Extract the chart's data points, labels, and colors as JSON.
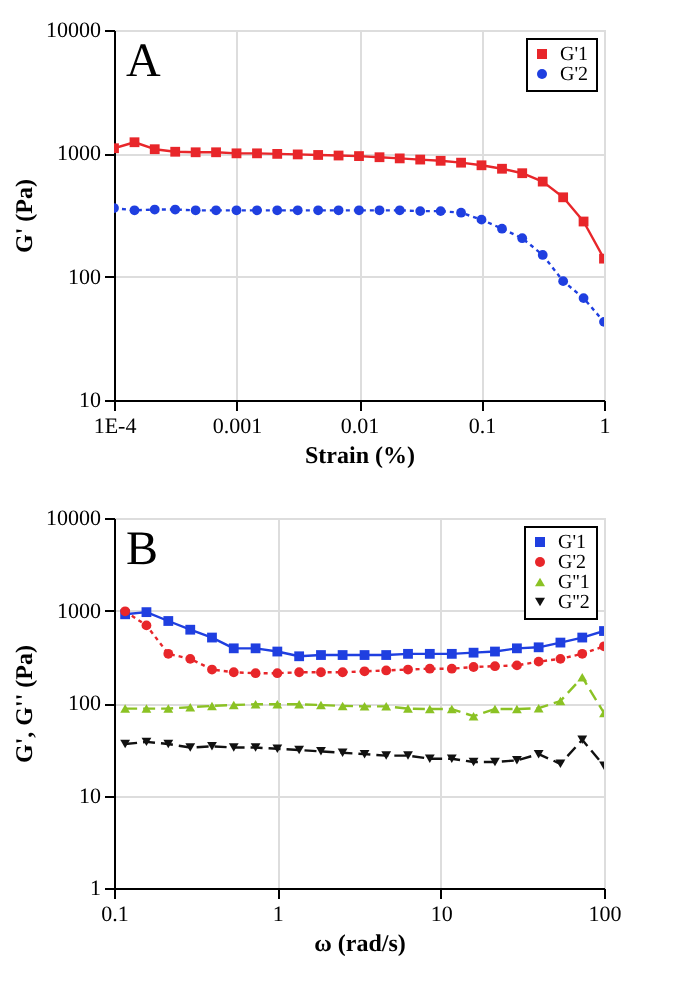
{
  "chart_data": [
    {
      "type": "line",
      "annotations": [
        "A"
      ],
      "xlabel": "Strain (%)",
      "ylabel": "G' (Pa)",
      "log": "xy",
      "grid": true,
      "legend": "top right",
      "xlim": [
        0.0001,
        1
      ],
      "xticks": [
        {
          "value": 0.0001,
          "label": "1E-4"
        },
        0.001,
        0.01,
        0.1,
        1
      ],
      "ylim": [
        10,
        10000
      ],
      "yticks": [
        10,
        100,
        1000,
        10000
      ],
      "x": [
        0.0001,
        0.000147,
        0.000215,
        0.000316,
        0.000464,
        0.000681,
        0.001,
        0.00147,
        0.00215,
        0.00316,
        0.00464,
        0.00681,
        0.01,
        0.0147,
        0.0215,
        0.0316,
        0.0464,
        0.0681,
        0.1,
        0.147,
        0.215,
        0.316,
        0.464,
        0.681,
        1
      ],
      "series": [
        {
          "name": "G'1",
          "color": "#e8262a",
          "marker": "square",
          "line_style": "solid",
          "values": [
            1100,
            1230,
            1080,
            1030,
            1020,
            1020,
            1000,
            1000,
            990,
            980,
            970,
            960,
            950,
            930,
            910,
            890,
            870,
            840,
            800,
            750,
            690,
            590,
            440,
            280,
            140
          ]
        },
        {
          "name": "G'2",
          "color": "#1f3fe0",
          "marker": "circle",
          "line_style": "dotted",
          "values": [
            360,
            345,
            350,
            350,
            345,
            345,
            345,
            345,
            345,
            345,
            345,
            345,
            345,
            345,
            345,
            340,
            340,
            330,
            290,
            245,
            205,
            150,
            92,
            67,
            43
          ]
        }
      ]
    },
    {
      "type": "line",
      "annotations": [
        "B"
      ],
      "xlabel": "ω (rad/s)",
      "ylabel": "G', G'' (Pa)",
      "log": "xy",
      "grid": true,
      "legend": "top right",
      "xlim": [
        0.1,
        100
      ],
      "xticks": [
        0.1,
        1,
        10,
        100
      ],
      "ylim": [
        1,
        10000
      ],
      "yticks": [
        1,
        10,
        100,
        1000,
        10000
      ],
      "x": [
        0.117,
        0.158,
        0.215,
        0.293,
        0.398,
        0.541,
        0.736,
        1,
        1.36,
        1.85,
        2.51,
        3.42,
        4.64,
        6.31,
        8.58,
        11.7,
        15.9,
        21.5,
        29.3,
        39.8,
        54.1,
        73.6,
        100
      ],
      "series": [
        {
          "name": "G'1",
          "color": "#1f3fe0",
          "marker": "square",
          "line_style": "solid",
          "values": [
            910,
            960,
            770,
            620,
            510,
            390,
            390,
            360,
            320,
            330,
            330,
            330,
            330,
            340,
            340,
            340,
            350,
            360,
            390,
            400,
            450,
            510,
            600
          ]
        },
        {
          "name": "G'2",
          "color": "#e8262a",
          "marker": "circle",
          "line_style": "dotted",
          "values": [
            980,
            690,
            340,
            300,
            230,
            215,
            210,
            210,
            215,
            215,
            215,
            220,
            225,
            230,
            235,
            235,
            245,
            250,
            255,
            280,
            300,
            340,
            410
          ]
        },
        {
          "name": "G''1",
          "color": "#8bc224",
          "marker": "triangle",
          "line_style": "dashed",
          "values": [
            87,
            87,
            87,
            90,
            93,
            95,
            97,
            97,
            97,
            95,
            93,
            92,
            92,
            87,
            86,
            86,
            72,
            86,
            86,
            88,
            105,
            190,
            78
          ]
        },
        {
          "name": "G''2",
          "color": "#111111",
          "marker": "triangle-down",
          "line_style": "dashed",
          "values": [
            36,
            38,
            36,
            33,
            34,
            33,
            33,
            32,
            31,
            30,
            29,
            28,
            27,
            27,
            25,
            25,
            23,
            23,
            24,
            28,
            22,
            40,
            21
          ]
        }
      ]
    }
  ]
}
